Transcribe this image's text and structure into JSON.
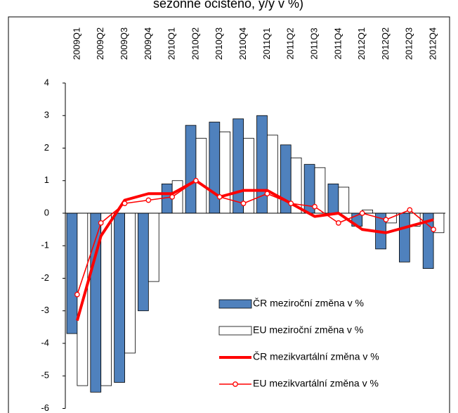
{
  "chart_data": {
    "type": "bar_line",
    "title": "sezónně očištěno, y/y v %)",
    "categories": [
      "2009Q1",
      "2009Q2",
      "2009Q3",
      "2009Q4",
      "2010Q1",
      "2010Q2",
      "2010Q3",
      "2010Q4",
      "2011Q1",
      "2011Q2",
      "2011Q3",
      "2011Q4",
      "2012Q1",
      "2012Q2",
      "2012Q3",
      "2012Q4"
    ],
    "series": [
      {
        "name": "ČR meziroční změna v %",
        "kind": "bar",
        "color": "#4f81bd",
        "values": [
          -3.7,
          -5.5,
          -5.2,
          -3.0,
          0.9,
          2.7,
          2.8,
          2.9,
          3.0,
          2.1,
          1.5,
          0.9,
          -0.4,
          -1.1,
          -1.5,
          -1.7
        ]
      },
      {
        "name": "EU meziroční změna v %",
        "kind": "bar",
        "color": "#ffffff",
        "values": [
          -5.3,
          -5.3,
          -4.3,
          -2.1,
          1.0,
          2.3,
          2.5,
          2.3,
          2.4,
          1.7,
          1.4,
          0.8,
          0.1,
          -0.3,
          -0.4,
          -0.6
        ]
      },
      {
        "name": "ČR mezikvartální změna v %",
        "kind": "line",
        "color": "#ff0000",
        "values": [
          -3.3,
          -0.7,
          0.4,
          0.6,
          0.6,
          1.0,
          0.5,
          0.7,
          0.7,
          0.3,
          -0.1,
          0.0,
          -0.5,
          -0.6,
          -0.4,
          -0.2
        ]
      },
      {
        "name": "EU mezikvartální změna v %",
        "kind": "line_marker",
        "color": "#ff0000",
        "values": [
          -2.5,
          -0.3,
          0.3,
          0.4,
          0.5,
          1.0,
          0.5,
          0.3,
          0.6,
          0.3,
          0.2,
          -0.3,
          0.0,
          -0.2,
          0.1,
          -0.5
        ]
      }
    ],
    "ylim": [
      -6,
      4
    ],
    "yticks": [
      -6,
      -5,
      -4,
      -3,
      -2,
      -1,
      0,
      1,
      2,
      3,
      4
    ],
    "grid": false
  }
}
